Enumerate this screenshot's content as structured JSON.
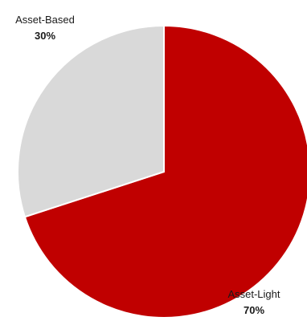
{
  "chart_data": {
    "type": "pie",
    "title": "",
    "start_angle_deg": 0,
    "direction": "clockwise",
    "slices": [
      {
        "label": "Asset-Light",
        "value": 70,
        "value_label": "70%",
        "color": "#c00000"
      },
      {
        "label": "Asset-Based",
        "value": 30,
        "value_label": "30%",
        "color": "#d9d9d9"
      }
    ]
  }
}
